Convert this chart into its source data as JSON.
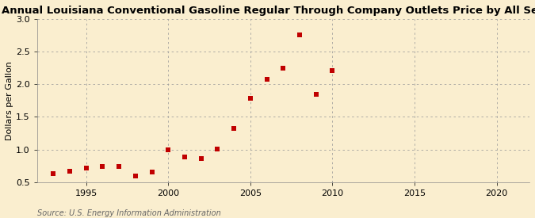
{
  "title": "Annual Louisiana Conventional Gasoline Regular Through Company Outlets Price by All Sellers",
  "ylabel": "Dollars per Gallon",
  "source": "Source: U.S. Energy Information Administration",
  "years": [
    1993,
    1994,
    1995,
    1996,
    1997,
    1998,
    1999,
    2000,
    2001,
    2002,
    2003,
    2004,
    2005,
    2006,
    2007,
    2008,
    2009,
    2010
  ],
  "values": [
    0.63,
    0.67,
    0.72,
    0.74,
    0.74,
    0.6,
    0.65,
    1.0,
    0.89,
    0.86,
    1.01,
    1.32,
    1.78,
    2.07,
    2.25,
    2.75,
    1.84,
    2.21
  ],
  "xlim": [
    1992,
    2022
  ],
  "ylim": [
    0.5,
    3.0
  ],
  "xticks": [
    1995,
    2000,
    2005,
    2010,
    2015,
    2020
  ],
  "yticks": [
    0.5,
    1.0,
    1.5,
    2.0,
    2.5,
    3.0
  ],
  "marker_color": "#c00000",
  "marker_size": 22,
  "background_color": "#faeecf",
  "grid_color": "#999999",
  "title_fontsize": 9.5,
  "axis_label_fontsize": 8,
  "tick_fontsize": 8,
  "source_fontsize": 7
}
